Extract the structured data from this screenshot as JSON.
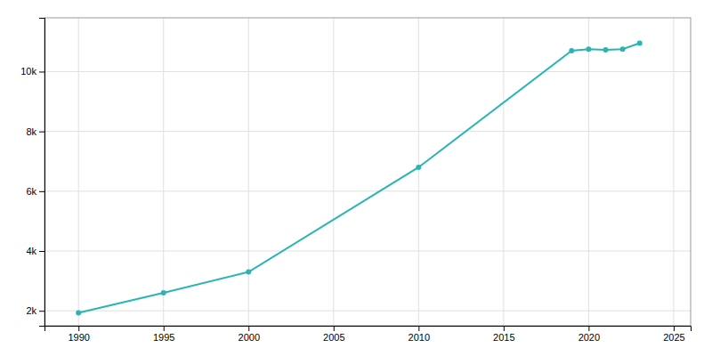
{
  "chart_data": {
    "type": "line",
    "x": [
      1990,
      1995,
      2000,
      2010,
      2019,
      2020,
      2021,
      2022,
      2023
    ],
    "values": [
      1930,
      2600,
      3300,
      6800,
      10700,
      10750,
      10730,
      10750,
      10950
    ],
    "color": "#29b5b5",
    "marker": "circle",
    "xlim": [
      1988,
      2026
    ],
    "ylim": [
      1500,
      11800
    ],
    "xticks": [
      1990,
      1995,
      2000,
      2005,
      2010,
      2015,
      2020,
      2025
    ],
    "yticks": [
      {
        "value": 2000,
        "label": "2k"
      },
      {
        "value": 4000,
        "label": "4k"
      },
      {
        "value": 6000,
        "label": "6k"
      },
      {
        "value": 8000,
        "label": "8k"
      },
      {
        "value": 10000,
        "label": "10k"
      }
    ],
    "grid": true
  }
}
